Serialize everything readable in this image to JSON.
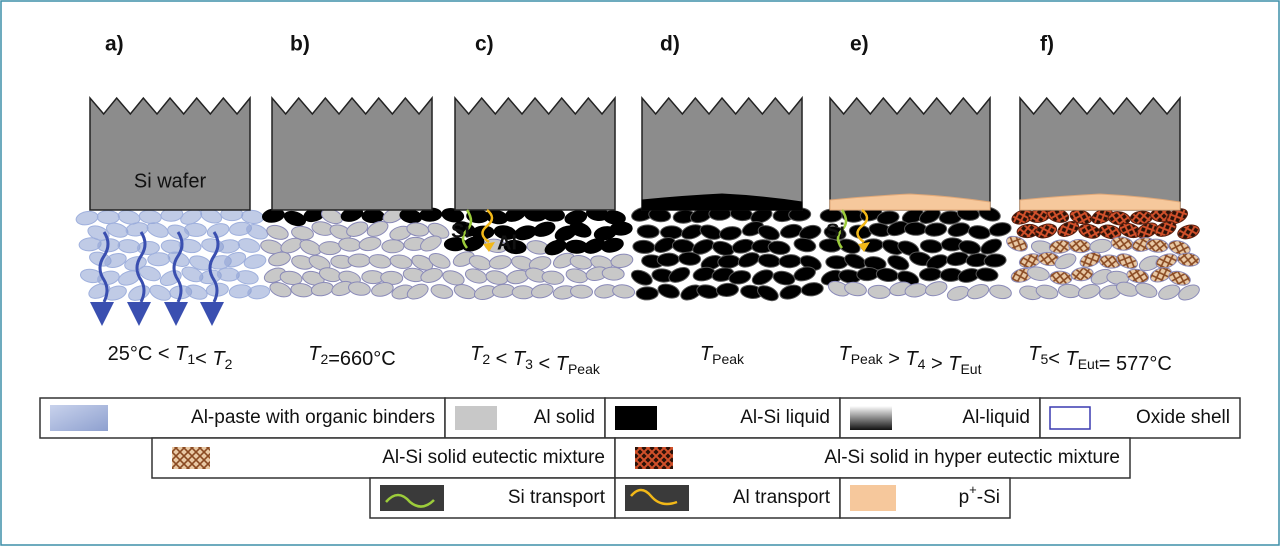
{
  "panels": [
    {
      "letter": "a)",
      "temp": {
        "symbol": "T",
        "sub": "1"
      },
      "condition": [
        {
          "text": "25°C < "
        },
        {
          "symbol": "T",
          "sub": "1"
        },
        {
          "text": "< "
        },
        {
          "symbol": "T",
          "sub": "2"
        }
      ]
    },
    {
      "letter": "b)",
      "temp": {
        "symbol": "T",
        "sub": "2"
      },
      "condition": [
        {
          "symbol": "T",
          "sub": "2"
        },
        {
          "text": "=660°C"
        }
      ]
    },
    {
      "letter": "c)",
      "temp": {
        "symbol": "T",
        "sub": "3"
      },
      "condition": [
        {
          "symbol": "T",
          "sub": "2"
        },
        {
          "text": " < "
        },
        {
          "symbol": "T",
          "sub": "3"
        },
        {
          "text": " < "
        },
        {
          "symbol": "T",
          "sub": "Peak"
        }
      ]
    },
    {
      "letter": "d)",
      "temp": {
        "symbol": "T",
        "sub": "Peak"
      },
      "condition": [
        {
          "symbol": "T",
          "sub": "Peak"
        }
      ]
    },
    {
      "letter": "e)",
      "temp": {
        "symbol": "T",
        "sub": "4"
      },
      "condition": [
        {
          "symbol": "T",
          "sub": "Peak"
        },
        {
          "text": " > "
        },
        {
          "symbol": "T",
          "sub": "4"
        },
        {
          "text": " > "
        },
        {
          "symbol": "T",
          "sub": "Eut"
        }
      ]
    },
    {
      "letter": "f)",
      "temp": {
        "symbol": "T",
        "sub": "5"
      },
      "condition": [
        {
          "symbol": "T",
          "sub": "5"
        },
        {
          "text": "< "
        },
        {
          "symbol": "T",
          "sub": "Eut"
        },
        {
          "text": "= 577°C"
        }
      ]
    }
  ],
  "labels": {
    "wafer": "Si wafer",
    "si": "Si",
    "al": "Al"
  },
  "legend": [
    [
      {
        "text": "Al-paste with organic binders"
      },
      {
        "text": "Al solid"
      },
      {
        "text": "Al-Si liquid"
      },
      {
        "text": "Al-liquid"
      },
      {
        "text": "Oxide shell"
      }
    ],
    [
      {
        "text": "Al-Si solid eutectic mixture"
      },
      {
        "text": "Al-Si solid in hyper eutectic mixture"
      }
    ],
    [
      {
        "text": "Si transport"
      },
      {
        "text": "Al transport"
      },
      {
        "text": "p",
        "sup": "+",
        "after": "-Si"
      }
    ]
  ]
}
